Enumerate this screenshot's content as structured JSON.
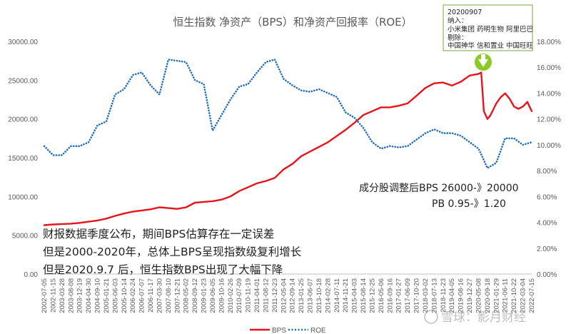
{
  "chart_data": {
    "type": "line",
    "title": "恒生指数 净资产（BPS）和净资产回报率（ROE）",
    "y_left": {
      "ticks": [
        "0.00",
        "5000.00",
        "10000.00",
        "15000.00",
        "20000.00",
        "25000.00",
        "30000.00"
      ],
      "ylim": [
        0,
        30000
      ]
    },
    "y_right": {
      "ticks": [
        "0.00%",
        "2.00%",
        "4.00%",
        "6.00%",
        "8.00%",
        "10.00%",
        "12.00%",
        "14.00%",
        "16.00%",
        "18.00%"
      ],
      "ylim": [
        0,
        18
      ]
    },
    "x_ticks": [
      "2002-07-05",
      "2002-11-15",
      "2003-03-28",
      "2003-08-08",
      "2003-12-19",
      "2004-04-30",
      "2004-09-10",
      "2005-01-21",
      "2005-06-03",
      "2005-10-14",
      "2006-02-24",
      "2006-07-07",
      "2006-11-17",
      "2007-03-30",
      "2007-08-10",
      "2007-12-21",
      "2008-05-02",
      "2008-09-12",
      "2009-01-23",
      "2009-06-05",
      "2009-10-16",
      "2010-02-26",
      "2010-07-09",
      "2010-11-19",
      "2011-04-01",
      "2011-08-12",
      "2011-12-23",
      "2012-05-04",
      "2012-09-14",
      "2013-01-25",
      "2013-06-07",
      "2013-10-18",
      "2014-02-28",
      "2014-07-11",
      "2014-11-21",
      "2015-04-03",
      "2015-08-14",
      "2015-12-25",
      "2016-05-06",
      "2016-09-16",
      "2017-01-27",
      "2017-06-09",
      "2017-10-20",
      "2018-03-02",
      "2018-07-13",
      "2018-11-23",
      "2019-04-05",
      "2019-08-16",
      "2019-12-27",
      "2020-05-08",
      "2020-09-18",
      "2021-01-29",
      "2021-06-11",
      "2021-10-22",
      "2022-03-04",
      "2022-07-15"
    ],
    "series": [
      {
        "name": "BPS",
        "axis": "left",
        "color": "#e8141c",
        "style": "solid",
        "points": [
          [
            0,
            6300
          ],
          [
            1,
            6400
          ],
          [
            2,
            6450
          ],
          [
            3,
            6500
          ],
          [
            4,
            6600
          ],
          [
            5,
            6750
          ],
          [
            6,
            6900
          ],
          [
            7,
            7150
          ],
          [
            8,
            7500
          ],
          [
            9,
            7800
          ],
          [
            10,
            8050
          ],
          [
            11,
            8200
          ],
          [
            12,
            8350
          ],
          [
            13,
            8600
          ],
          [
            14,
            8500
          ],
          [
            15,
            8400
          ],
          [
            16,
            8600
          ],
          [
            17,
            9200
          ],
          [
            18,
            9300
          ],
          [
            19,
            9400
          ],
          [
            20,
            9600
          ],
          [
            21,
            10000
          ],
          [
            22,
            10700
          ],
          [
            23,
            11200
          ],
          [
            24,
            11700
          ],
          [
            25,
            12000
          ],
          [
            26,
            12400
          ],
          [
            27,
            13500
          ],
          [
            28,
            14200
          ],
          [
            29,
            15200
          ],
          [
            30,
            15800
          ],
          [
            31,
            16400
          ],
          [
            32,
            17000
          ],
          [
            33,
            17800
          ],
          [
            34,
            18600
          ],
          [
            35,
            19500
          ],
          [
            36,
            20500
          ],
          [
            37,
            21000
          ],
          [
            38,
            21500
          ],
          [
            39,
            21500
          ],
          [
            40,
            21700
          ],
          [
            41,
            22000
          ],
          [
            42,
            23000
          ],
          [
            43,
            24000
          ],
          [
            44,
            24600
          ],
          [
            45,
            24700
          ],
          [
            46,
            24300
          ],
          [
            47,
            24800
          ],
          [
            48,
            25600
          ],
          [
            49,
            25800
          ],
          [
            49.3,
            26000
          ],
          [
            49.6,
            21000
          ],
          [
            50,
            20000
          ],
          [
            50.3,
            20400
          ],
          [
            50.7,
            21300
          ],
          [
            51,
            22000
          ],
          [
            51.5,
            22800
          ],
          [
            52,
            23300
          ],
          [
            52.5,
            22600
          ],
          [
            53,
            21600
          ],
          [
            53.5,
            21300
          ],
          [
            54,
            21600
          ],
          [
            54.5,
            22200
          ],
          [
            55,
            21000
          ]
        ]
      },
      {
        "name": "ROE",
        "axis": "right",
        "color": "#1f6fc0",
        "style": "dotted",
        "points": [
          [
            0,
            9.9
          ],
          [
            1,
            9.2
          ],
          [
            2,
            9.2
          ],
          [
            3,
            9.9
          ],
          [
            4,
            9.9
          ],
          [
            5,
            10.2
          ],
          [
            6,
            11.5
          ],
          [
            7,
            11.8
          ],
          [
            8,
            13.9
          ],
          [
            9,
            14.3
          ],
          [
            10,
            15.4
          ],
          [
            11,
            15.6
          ],
          [
            12,
            14.6
          ],
          [
            13,
            13.9
          ],
          [
            14,
            16.6
          ],
          [
            15,
            16.5
          ],
          [
            16,
            16.4
          ],
          [
            17,
            15.0
          ],
          [
            18,
            14.7
          ],
          [
            19,
            11.1
          ],
          [
            20,
            12.3
          ],
          [
            21,
            13.5
          ],
          [
            22,
            14.5
          ],
          [
            23,
            14.7
          ],
          [
            24,
            15.6
          ],
          [
            25,
            16.4
          ],
          [
            26,
            16.6
          ],
          [
            27,
            15.1
          ],
          [
            28,
            14.6
          ],
          [
            29,
            14.2
          ],
          [
            30,
            14.1
          ],
          [
            31,
            14.3
          ],
          [
            32,
            14.0
          ],
          [
            33,
            13.7
          ],
          [
            34,
            12.5
          ],
          [
            35,
            12.1
          ],
          [
            36,
            11.3
          ],
          [
            37,
            10.2
          ],
          [
            38,
            9.7
          ],
          [
            39,
            9.9
          ],
          [
            40,
            9.8
          ],
          [
            41,
            9.9
          ],
          [
            42,
            10.4
          ],
          [
            43,
            10.9
          ],
          [
            44,
            11.2
          ],
          [
            45,
            10.9
          ],
          [
            46,
            10.9
          ],
          [
            47,
            10.7
          ],
          [
            48,
            10.2
          ],
          [
            49,
            9.7
          ],
          [
            50,
            8.2
          ],
          [
            51,
            8.6
          ],
          [
            52,
            10.5
          ],
          [
            53,
            10.5
          ],
          [
            54,
            10.0
          ],
          [
            55,
            10.2
          ]
        ]
      }
    ],
    "legend": {
      "position": "bottom-center",
      "entries": [
        {
          "label": "BPS",
          "color": "#e8141c",
          "style": "solid"
        },
        {
          "label": "ROE",
          "color": "#1f6fc0",
          "style": "dotted"
        }
      ]
    },
    "annotations": {
      "main_lines": [
        "财报数据季度公布，期间BPS估算存在一定误差",
        "但是2000-2020年，总体上BPS呈现指数级复利增长",
        "但是2020.9.7 后，恒生指数BPS出现了大幅下降"
      ],
      "right_lines": [
        "成分股调整后BPS 26000-》20000",
        "PB    0.95-》1.20"
      ],
      "callout": {
        "lines": [
          "20200907",
          "纳入：",
          "小米集团 药明生物 阿里巴巴",
          "剔除：",
          "中国神华 信和置业 中国旺旺"
        ],
        "arrow_color": "#8ac926",
        "border_color": "#7aa83a"
      }
    },
    "grid": false
  },
  "watermark": {
    "text": "雪球：影月财经"
  }
}
